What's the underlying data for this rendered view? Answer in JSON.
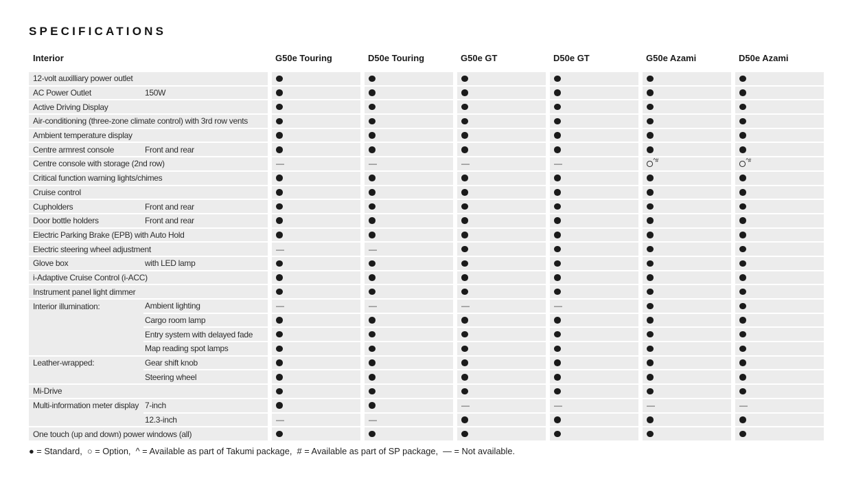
{
  "title": "SPECIFICATIONS",
  "section": "Interior",
  "colors": {
    "row_bg": "#ececec",
    "symbol": "#1b1b1b",
    "text": "#2d2d2d"
  },
  "legend": "● = Standard,  ○ = Option,  ^ = Available as part of Takumi package,  # = Available as part of SP package,  — = Not available.",
  "table": {
    "columns": [
      "G50e Touring",
      "D50e Touring",
      "G50e GT",
      "D50e GT",
      "G50e Azami",
      "D50e Azami"
    ],
    "groups": [
      {
        "label": "12-volt auxilliary power outlet",
        "rows": [
          {
            "sub": "",
            "values": [
              "●",
              "●",
              "●",
              "●",
              "●",
              "●"
            ]
          }
        ]
      },
      {
        "label": "AC Power Outlet",
        "rows": [
          {
            "sub": "150W",
            "values": [
              "●",
              "●",
              "●",
              "●",
              "●",
              "●"
            ]
          }
        ]
      },
      {
        "label": "Active Driving Display",
        "rows": [
          {
            "sub": "",
            "values": [
              "●",
              "●",
              "●",
              "●",
              "●",
              "●"
            ]
          }
        ]
      },
      {
        "label": "Air-conditioning (three-zone climate control) with 3rd row vents",
        "rows": [
          {
            "sub": "",
            "values": [
              "●",
              "●",
              "●",
              "●",
              "●",
              "●"
            ]
          }
        ]
      },
      {
        "label": "Ambient temperature display",
        "rows": [
          {
            "sub": "",
            "values": [
              "●",
              "●",
              "●",
              "●",
              "●",
              "●"
            ]
          }
        ]
      },
      {
        "label": "Centre armrest console",
        "rows": [
          {
            "sub": "Front and rear",
            "values": [
              "●",
              "●",
              "●",
              "●",
              "●",
              "●"
            ]
          }
        ]
      },
      {
        "label": "Centre console with storage (2nd row)",
        "rows": [
          {
            "sub": "",
            "values": [
              "—",
              "—",
              "—",
              "—",
              "○^#",
              "○^#"
            ]
          }
        ]
      },
      {
        "label": "Critical function warning lights/chimes",
        "rows": [
          {
            "sub": "",
            "values": [
              "●",
              "●",
              "●",
              "●",
              "●",
              "●"
            ]
          }
        ]
      },
      {
        "label": "Cruise control",
        "rows": [
          {
            "sub": "",
            "values": [
              "●",
              "●",
              "●",
              "●",
              "●",
              "●"
            ]
          }
        ]
      },
      {
        "label": "Cupholders",
        "rows": [
          {
            "sub": "Front and rear",
            "values": [
              "●",
              "●",
              "●",
              "●",
              "●",
              "●"
            ]
          }
        ]
      },
      {
        "label": "Door bottle holders",
        "rows": [
          {
            "sub": "Front and rear",
            "values": [
              "●",
              "●",
              "●",
              "●",
              "●",
              "●"
            ]
          }
        ]
      },
      {
        "label": "Electric Parking Brake (EPB) with Auto Hold",
        "rows": [
          {
            "sub": "",
            "values": [
              "●",
              "●",
              "●",
              "●",
              "●",
              "●"
            ]
          }
        ]
      },
      {
        "label": "Electric steering wheel adjustment",
        "rows": [
          {
            "sub": "",
            "values": [
              "—",
              "—",
              "●",
              "●",
              "●",
              "●"
            ]
          }
        ]
      },
      {
        "label": "Glove box",
        "rows": [
          {
            "sub": "with LED lamp",
            "values": [
              "●",
              "●",
              "●",
              "●",
              "●",
              "●"
            ]
          }
        ]
      },
      {
        "label": "i-Adaptive Cruise Control (i-ACC)",
        "rows": [
          {
            "sub": "",
            "values": [
              "●",
              "●",
              "●",
              "●",
              "●",
              "●"
            ]
          }
        ]
      },
      {
        "label": "Instrument panel light dimmer",
        "rows": [
          {
            "sub": "",
            "values": [
              "●",
              "●",
              "●",
              "●",
              "●",
              "●"
            ]
          }
        ]
      },
      {
        "label": "Interior illumination:",
        "rows": [
          {
            "sub": "Ambient lighting",
            "values": [
              "—",
              "—",
              "—",
              "—",
              "●",
              "●"
            ]
          },
          {
            "sub": "Cargo room lamp",
            "values": [
              "●",
              "●",
              "●",
              "●",
              "●",
              "●"
            ]
          },
          {
            "sub": "Entry system with delayed fade",
            "values": [
              "●",
              "●",
              "●",
              "●",
              "●",
              "●"
            ]
          },
          {
            "sub": "Map reading spot lamps",
            "values": [
              "●",
              "●",
              "●",
              "●",
              "●",
              "●"
            ]
          }
        ]
      },
      {
        "label": "Leather-wrapped:",
        "rows": [
          {
            "sub": "Gear shift knob",
            "values": [
              "●",
              "●",
              "●",
              "●",
              "●",
              "●"
            ]
          },
          {
            "sub": "Steering wheel",
            "values": [
              "●",
              "●",
              "●",
              "●",
              "●",
              "●"
            ]
          }
        ]
      },
      {
        "label": "Mi-Drive",
        "rows": [
          {
            "sub": "",
            "values": [
              "●",
              "●",
              "●",
              "●",
              "●",
              "●"
            ]
          }
        ]
      },
      {
        "label": "Multi-information meter display",
        "rows": [
          {
            "sub": "7-inch",
            "values": [
              "●",
              "●",
              "—",
              "—",
              "—",
              "—"
            ]
          },
          {
            "sub": "12.3-inch",
            "values": [
              "—",
              "—",
              "●",
              "●",
              "●",
              "●"
            ]
          }
        ]
      },
      {
        "label": "One touch (up and down) power windows (all)",
        "rows": [
          {
            "sub": "",
            "values": [
              "●",
              "●",
              "●",
              "●",
              "●",
              "●"
            ]
          }
        ]
      }
    ]
  }
}
